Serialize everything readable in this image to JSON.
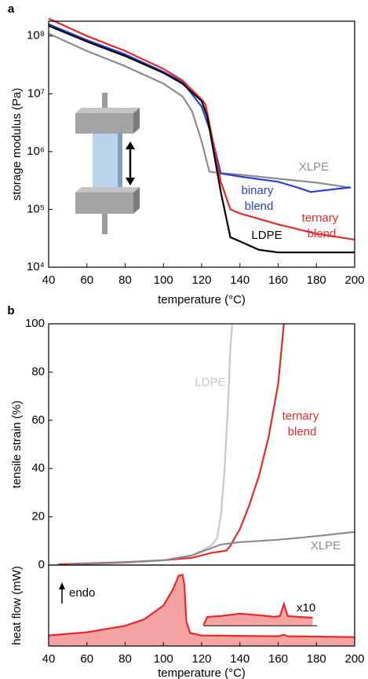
{
  "chart_data": [
    {
      "type": "line",
      "panel_label": "a",
      "y_label": "storage modulus (Pa)",
      "x_label": "temperature (°C)",
      "log_y": true,
      "xlim": [
        40,
        200
      ],
      "xticks": [
        40,
        60,
        80,
        100,
        120,
        140,
        160,
        180,
        200
      ],
      "ylim": [
        10000,
        180000000
      ],
      "yticks": [
        {
          "value": 10000,
          "label": "10⁴"
        },
        {
          "value": 100000,
          "label": "10⁵"
        },
        {
          "value": 1000000,
          "label": "10⁶"
        },
        {
          "value": 10000000,
          "label": "10⁷"
        },
        {
          "value": 100000000,
          "label": "10⁸"
        }
      ],
      "series": [
        {
          "name": "XLPE",
          "color": "#8c8c8c",
          "x": [
            40,
            60,
            80,
            100,
            110,
            115,
            120,
            124,
            128,
            140,
            160,
            180,
            197
          ],
          "values": [
            110000000,
            55000000,
            30000000,
            15000000,
            9000000,
            5000000,
            1500000,
            450000,
            430000,
            400000,
            340000,
            290000,
            240000
          ]
        },
        {
          "name": "binary blend",
          "color": "#2a3fd6",
          "x": [
            40,
            60,
            80,
            100,
            110,
            120,
            125,
            130,
            140,
            160,
            170,
            177,
            190,
            198
          ],
          "values": [
            160000000,
            85000000,
            48000000,
            24000000,
            16000000,
            6000000,
            2000000,
            420000,
            370000,
            300000,
            240000,
            200000,
            225000,
            240000
          ]
        },
        {
          "name": "ternary blend",
          "color": "#e8292b",
          "x": [
            40,
            60,
            80,
            100,
            110,
            120,
            122,
            127,
            130,
            135,
            140,
            160,
            180,
            200
          ],
          "values": [
            200000000,
            100000000,
            55000000,
            27000000,
            17000000,
            8000000,
            6500000,
            1000000,
            300000,
            100000,
            85000,
            55000,
            38000,
            30000
          ]
        },
        {
          "name": "LDPE",
          "color": "#000000",
          "x": [
            40,
            60,
            80,
            100,
            110,
            120,
            123,
            130,
            135,
            140,
            150,
            160,
            180,
            200
          ],
          "values": [
            150000000,
            80000000,
            45000000,
            23000000,
            15000000,
            7500000,
            4000000,
            200000,
            33000,
            28000,
            20000,
            18000,
            18000,
            18000
          ]
        }
      ]
    },
    {
      "type": "line",
      "panel_label": "b",
      "y_label": "tensile strain (%)",
      "xlim": [
        40,
        200
      ],
      "ylim": [
        0,
        100
      ],
      "yticks": [
        0,
        20,
        40,
        60,
        80,
        100
      ],
      "series": [
        {
          "name": "LDPE",
          "color": "#c8c8c8",
          "x": [
            50,
            80,
            100,
            115,
            125,
            128,
            130,
            132,
            134,
            135,
            136
          ],
          "values": [
            0.5,
            1,
            2,
            4,
            8,
            11,
            20,
            40,
            70,
            90,
            100
          ]
        },
        {
          "name": "ternary blend",
          "color": "#e8292b",
          "x": [
            45,
            60,
            80,
            100,
            115,
            125,
            133,
            135,
            140,
            145,
            150,
            155,
            160,
            163
          ],
          "values": [
            0.3,
            0.7,
            1.2,
            2,
            3,
            5,
            6,
            8,
            15,
            25,
            37,
            53,
            75,
            100
          ]
        },
        {
          "name": "XLPE",
          "color": "#8c8c8c",
          "x": [
            50,
            80,
            100,
            115,
            125,
            130,
            135,
            140,
            160,
            180,
            200
          ],
          "values": [
            0.3,
            1,
            2,
            4,
            7,
            8.5,
            9,
            9.5,
            10.5,
            12,
            13.7
          ]
        }
      ]
    },
    {
      "type": "area",
      "y_label": "heat flow (mW)",
      "x_label": "temperature (°C)",
      "xlim": [
        40,
        200
      ],
      "xticks": [
        40,
        60,
        80,
        100,
        120,
        140,
        160,
        180,
        200
      ],
      "ylim": [
        0,
        1
      ],
      "annotations": [
        "endo",
        "x10"
      ],
      "series": [
        {
          "color": "#e8292b",
          "x": [
            40,
            60,
            80,
            90,
            100,
            105,
            108,
            110,
            111,
            112,
            114,
            120,
            160,
            163,
            165,
            200
          ],
          "values": [
            0.13,
            0.17,
            0.25,
            0.33,
            0.5,
            0.7,
            0.87,
            0.88,
            0.75,
            0.3,
            0.16,
            0.13,
            0.12,
            0.14,
            0.12,
            0.11
          ]
        },
        {
          "color": "#e8292b",
          "baseline": 0.25,
          "x": [
            121,
            123,
            130,
            140,
            150,
            158,
            161,
            163,
            165,
            170,
            178
          ],
          "values": [
            0.26,
            0.36,
            0.37,
            0.4,
            0.38,
            0.36,
            0.37,
            0.52,
            0.37,
            0.36,
            0.35
          ]
        }
      ]
    }
  ]
}
